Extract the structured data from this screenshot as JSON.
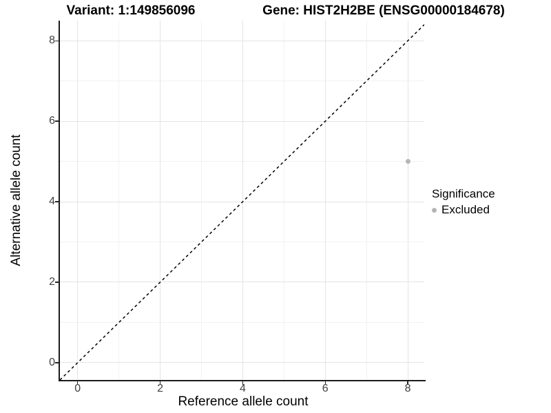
{
  "chart_data": {
    "type": "scatter",
    "title_left": "Variant: 1:149856096",
    "title_right": "Gene: HIST2H2BE (ENSG00000184678)",
    "xlabel": "Reference allele count",
    "ylabel": "Alternative allele count",
    "x_ticks": [
      0,
      2,
      4,
      6,
      8
    ],
    "x_minor_ticks": [
      1,
      3,
      5,
      7
    ],
    "y_ticks": [
      0,
      2,
      4,
      6,
      8
    ],
    "y_minor_ticks": [
      1,
      3,
      5,
      7
    ],
    "xlim": [
      -0.43,
      8.4
    ],
    "ylim": [
      -0.43,
      8.5
    ],
    "grid": true,
    "points": [
      {
        "x": 8,
        "y": 5,
        "significance": "Excluded"
      }
    ],
    "identity_line": {
      "equation": "y = x",
      "style": "dashed",
      "color": "#000000"
    },
    "legend": {
      "title": "Significance",
      "position": "right",
      "items": [
        {
          "label": "Excluded",
          "color": "#b5b5b5"
        }
      ]
    },
    "colors": {
      "point_excluded": "#b5b5b5",
      "grid_major": "#e4e4e4",
      "grid_minor": "#f2f2f2",
      "axis_line": "#1a1a1a"
    }
  }
}
